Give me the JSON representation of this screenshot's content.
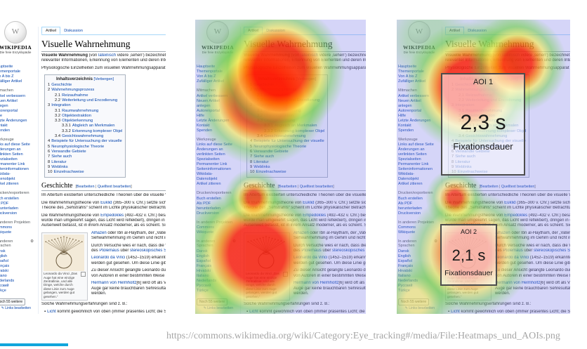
{
  "caption": {
    "url": "https://commons.wikimedia.org/wiki/Category:Eye_tracking#/media/File:Heatmaps_und_AOIs.png"
  },
  "progress_bar": {
    "color": "#11a6dc"
  },
  "panels": [
    {
      "id": "original",
      "description": "plain wikipedia screenshot"
    },
    {
      "id": "heatmap",
      "description": "wikipedia screenshot with gaze heatmap"
    },
    {
      "id": "heatmap-aois",
      "description": "wikipedia screenshot with gaze heatmap and AOI boxes",
      "aois": [
        {
          "label": "AOI 1",
          "duration": "2,3 s",
          "caption": "Fixationsdauer"
        },
        {
          "label": "AOI 2",
          "duration": "2,1 s",
          "caption": "Fixationsdauer"
        }
      ]
    }
  ],
  "wiki": {
    "logo": {
      "wordmark": "WIKIPEDIA",
      "tagline": "Die freie Enzyklopädie"
    },
    "tabs": [
      "Artikel",
      "Diskussion"
    ],
    "title": "Visuelle Wahrnehmung",
    "intro_p1": [
      [
        [
          "Visuelle Wahrnehmung",
          "b"
        ],
        [
          " (von ",
          ""
        ],
        [
          "lateinisch",
          "l"
        ],
        [
          " videre ‚sehen‘) bezeichnet in der ",
          ""
        ],
        [
          "Physiologie",
          "l"
        ],
        [
          " die",
          ""
        ]
      ],
      [
        [
          "relevanter Informationen, Erkennung von Elementen und deren Interpretation durch Abgleich",
          ""
        ]
      ]
    ],
    "intro_p2": [
      [
        [
          "Physiologische Einzelheiten zum visuellen Wahrnehmungsapparat von Menschen und Tieren",
          ""
        ]
      ]
    ],
    "toc": {
      "title": "Inhaltsverzeichnis",
      "toggle": "[Verbergen]",
      "items": [
        {
          "n": "1",
          "t": "Geschichte",
          "l": 1
        },
        {
          "n": "2",
          "t": "Wahrnehmungsprozess",
          "l": 1
        },
        {
          "n": "2.1",
          "t": "Reizaufnahme",
          "l": 2
        },
        {
          "n": "2.2",
          "t": "Weiterleitung und Encodierung",
          "l": 2
        },
        {
          "n": "3",
          "t": "Integration",
          "l": 1
        },
        {
          "n": "3.1",
          "t": "Raumwahrnehmung",
          "l": 2
        },
        {
          "n": "3.2",
          "t": "Objektextraktion",
          "l": 2
        },
        {
          "n": "3.3",
          "t": "Objekterkennung",
          "l": 2
        },
        {
          "n": "3.3.1",
          "t": "Abgleich an Merkmalen",
          "l": 3
        },
        {
          "n": "3.3.2",
          "t": "Erkennung komplexer Objekte",
          "l": 3
        },
        {
          "n": "3.4",
          "t": "Gesichtswahrnehmung",
          "l": 2
        },
        {
          "n": "4",
          "t": "Beispiele für Untersuchung der visuellen Wahrnehmung",
          "l": 1
        },
        {
          "n": "5",
          "t": "Neurophysiologische Theorie",
          "l": 1
        },
        {
          "n": "6",
          "t": "Verwandte Gebiete",
          "l": 1
        },
        {
          "n": "7",
          "t": "Siehe auch",
          "l": 1
        },
        {
          "n": "8",
          "t": "Literatur",
          "l": 1
        },
        {
          "n": "9",
          "t": "Weblinks",
          "l": 1
        },
        {
          "n": "10",
          "t": "Einzelnachweise",
          "l": 1
        }
      ]
    },
    "history": {
      "heading": "Geschichte",
      "edit_prefix": "[",
      "edit_link1": "Bearbeiten",
      "edit_sep": " | ",
      "edit_link2": "Quelltext bearbeiten",
      "edit_suffix": "]",
      "paras": [
        [
          [
            [
              "Im Altertum existierten unterschiedliche Theorien über die visuelle Wahrnehmung:",
              ""
            ]
          ]
        ],
        [
          [
            [
              "Die Wahrnehmungstheorie von ",
              ""
            ],
            [
              "Euklid",
              "l"
            ],
            [
              " (365–300 v. Chr.) setzte sich mit Problemen der",
              ""
            ]
          ],
          [
            [
              "Theorie des „Sehstrahls“ scheint im Lichte physikalischer Betrachtungen ziemlich abwegig",
              ""
            ]
          ]
        ],
        [
          [
            [
              "Die Wahrnehmungstheorie von ",
              ""
            ],
            [
              "Empedokles",
              "l"
            ],
            [
              " (492–432 v. Chr.) besagte scheinbar das",
              ""
            ]
          ],
          [
            [
              "würde man umgekehrt sagen, das Licht wird reflektiert), dringen in die Sinnesorgane –",
              ""
            ]
          ],
          [
            [
              "Außenwelt befasst, ist in ihrem Ansatz moderner, als es scheint. Sie bezieht sich aus",
              ""
            ]
          ]
        ]
      ],
      "side_paras": [
        [
          [
            [
              "Alhazen",
              "l"
            ],
            [
              " oder Ibn al-Haytham, der „Vater der O",
              ""
            ]
          ],
          [
            [
              "Sehwahrnehmung im Gehirn und nicht in Aug",
              ""
            ]
          ]
        ],
        [
          [
            [
              "Durch Versuche wies er nach, dass die Wahrn",
              ""
            ]
          ],
          [
            [
              "des ",
              ""
            ],
            [
              "Ptolemäus",
              "l"
            ],
            [
              " über ",
              ""
            ],
            [
              "stereoskopisches Sehen",
              "l"
            ],
            [
              ".",
              ""
            ]
          ]
        ],
        [
          [
            [
              "Leonardo da Vinci",
              "l"
            ],
            [
              " (1452–1519) erkannte als E",
              ""
            ]
          ],
          [
            [
              "werden gut gesehen. Um diese Linie gibt es e",
              ""
            ]
          ]
        ],
        [
          [
            [
              "Zu dieser Ansicht gelangte Leonardo durch B",
              ""
            ]
          ],
          [
            [
              "von Autoren in einer bestimmten Weise besch",
              ""
            ]
          ]
        ],
        [
          [
            [
              "Hermann von Helmholtz",
              "l"
            ],
            [
              "[6] wird oft als Vater de",
              ""
            ]
          ],
          [
            [
              "Auge gar keine brauchbaren Sehresultate lief",
              ""
            ]
          ],
          [
            [
              "werden.",
              ""
            ]
          ]
        ]
      ],
      "image_caption": "Leonardo da Vinci „Das Auge hat eine einzige Zentrallinie, und alle Dinge, welche durch diese Linie zum Auge gelangen, werden gut gesehen.“",
      "list_intro": [
        [
          [
            "Solche Wahrnehmungserfahrungen sind z. B.:",
            ""
          ]
        ]
      ],
      "bullets": [
        [
          [
            "Licht",
            "l"
          ],
          [
            " kommt gewöhnlich von oben (immer präsentes Licht; die Sonne, steht höher",
            ""
          ]
        ],
        [
          [
            "Gegenstände werden nicht von unten gesehen, da die allgemeine Blickrichtung ho",
            ""
          ]
        ],
        [
          [
            "Gesichter werden in aufrechter Position erkannt[5]",
            ""
          ]
        ]
      ]
    },
    "sidebar": {
      "top_items": [
        "Hauptseite",
        "Themenportale",
        "Von A bis Z",
        "Zufälliger Artikel"
      ],
      "groups": [
        {
          "heading": "Mitmachen",
          "items": [
            "Artikel verbessern",
            "Neuen Artikel anlegen",
            "Autorenportal",
            "Hilfe",
            "Letzte Änderungen",
            "Kontakt",
            "Spenden"
          ]
        },
        {
          "heading": "Werkzeuge",
          "items": [
            "Links auf diese Seite",
            "Änderungen an verlinkten Seiten",
            "Spezialseiten",
            "Permanenter Link",
            "Seiteninformationen",
            "Wikidata-Datenobjekt",
            "Artikel zitieren"
          ]
        },
        {
          "heading": "Drucken/exportieren",
          "items": [
            "Buch erstellen",
            "Als PDF herunterladen",
            "Druckversion"
          ]
        },
        {
          "heading": "In anderen Projekten",
          "items": [
            "Commons",
            "Wikiquote"
          ]
        }
      ],
      "languages": {
        "heading": "In anderen Sprachen",
        "items": [
          "Dansk",
          "English",
          "Español",
          "Français",
          "Hrvatski",
          "Italiano",
          "Nederlands",
          "Русский",
          "Türkçe"
        ],
        "more_button": "Noch 55 weitere",
        "edit_links": "Links bearbeiten"
      }
    }
  }
}
